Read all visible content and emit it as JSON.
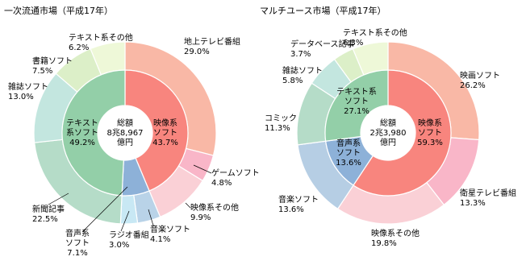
{
  "chart_data": [
    {
      "type": "donut",
      "title": "一次流通市場（平成17年）",
      "center_label": [
        "総額",
        "8兆8,967",
        "億円"
      ],
      "inner": {
        "categories": [
          [
            "映像系",
            "ソフト"
          ],
          [
            "音声系",
            "ソフト"
          ],
          [
            "テキスト",
            "系ソフト"
          ]
        ],
        "values": [
          43.7,
          7.1,
          49.2
        ],
        "value_labels": [
          "43.7%",
          "7.1%",
          "49.2%"
        ],
        "colors": [
          "#f8857e",
          "#8db1d8",
          "#93cfa8"
        ]
      },
      "outer": {
        "categories": [
          "地上テレビ番組",
          "ゲームソフト",
          "映像系その他",
          "音楽ソフト",
          "ラジオ番組",
          "新聞記事",
          "雑誌ソフト",
          "書籍ソフト",
          "テキスト系その他"
        ],
        "values": [
          29.0,
          4.8,
          9.9,
          4.1,
          3.0,
          22.5,
          13.0,
          7.5,
          6.2
        ],
        "value_labels": [
          "29.0%",
          "4.8%",
          "9.9%",
          "4.1%",
          "3.0%",
          "22.5%",
          "13.0%",
          "7.5%",
          "6.2%"
        ],
        "colors": [
          "#f9b8a6",
          "#f9b6c8",
          "#fad0d6",
          "#b9d3e8",
          "#c8e8f4",
          "#b5dcc8",
          "#c3e6df",
          "#dcefc8",
          "#eef8d8"
        ]
      }
    },
    {
      "type": "donut",
      "title": "マルチユース市場（平成17年）",
      "center_label": [
        "総額",
        "2兆3,980",
        "億円"
      ],
      "inner": {
        "categories": [
          [
            "映像系",
            "ソフト"
          ],
          [
            "音声系",
            "ソフト"
          ],
          [
            "テキスト系",
            "ソフト"
          ]
        ],
        "values": [
          59.3,
          13.6,
          27.1
        ],
        "value_labels": [
          "59.3%",
          "13.6%",
          "27.1%"
        ],
        "colors": [
          "#f8857e",
          "#8db1d8",
          "#93cfa8"
        ]
      },
      "outer": {
        "categories": [
          "映画ソフト",
          "衛星テレビ番組",
          "映像系その他",
          "音楽ソフト",
          "コミック",
          "雑誌ソフト",
          "データベース記事",
          "テキスト系その他"
        ],
        "values": [
          26.2,
          13.3,
          19.8,
          13.6,
          11.3,
          5.8,
          3.7,
          6.3
        ],
        "value_labels": [
          "26.2%",
          "13.3%",
          "19.8%",
          "13.6%",
          "11.3%",
          "5.8%",
          "3.7%",
          "6.3%"
        ],
        "colors": [
          "#f9b8a6",
          "#f9b6c8",
          "#fad0d6",
          "#b6cee4",
          "#b5dcc8",
          "#c3e6df",
          "#dcefc8",
          "#eef8d8"
        ]
      }
    }
  ]
}
